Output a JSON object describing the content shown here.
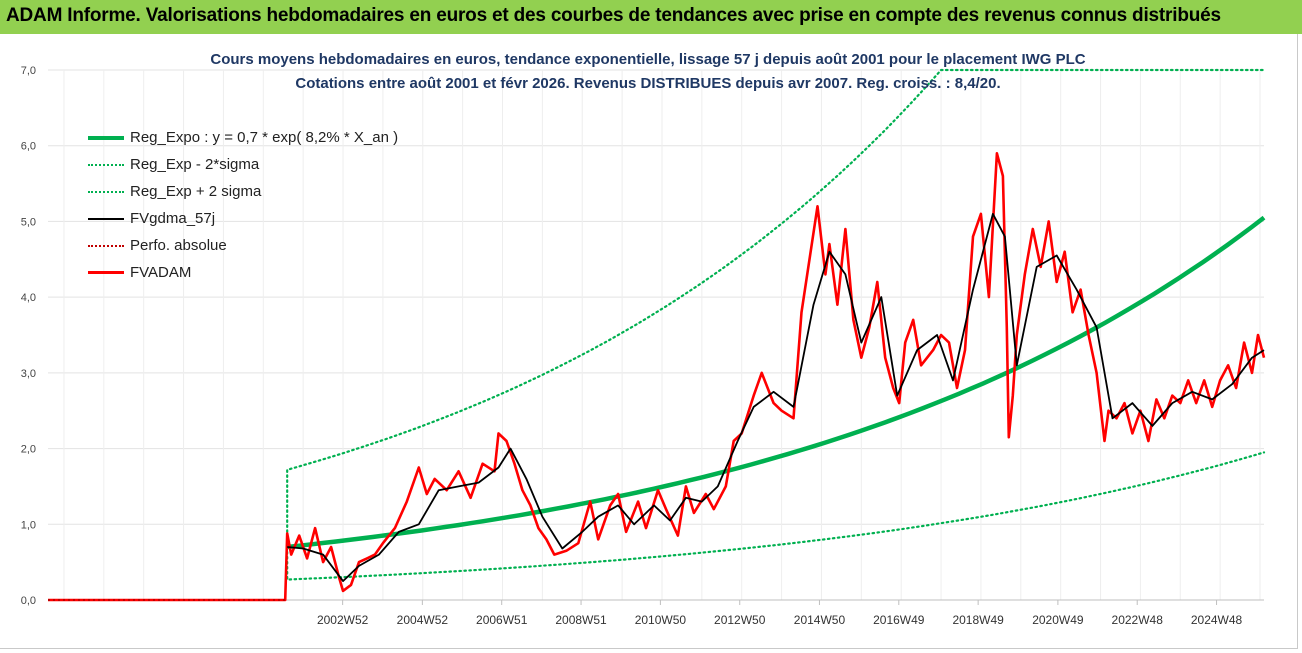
{
  "header": {
    "title": "ADAM Informe. Valorisations hebdomadaires en euros et des courbes de tendances avec prise en compte des revenus connus distribués"
  },
  "colors": {
    "header_bg": "#92d050",
    "title_text": "#1f3864",
    "reg_expo": "#00b050",
    "sigma_lines": "#00b050",
    "fvgdma": "#000000",
    "perfo": "#c00000",
    "fvadam": "#ff0000"
  },
  "chart_data": {
    "type": "line",
    "title_line1": "Cours moyens hebdomadaires en euros, tendance exponentielle, lissage 57 j depuis août 2001 pour le placement IWG PLC",
    "title_line2": "Cotations entre août 2001 et févr 2026. Revenus DISTRIBUES depuis avr 2007. Reg. croiss. : 8,4/20.",
    "ylim": [
      0,
      7
    ],
    "y_ticks": [
      "0,0",
      "1,0",
      "2,0",
      "3,0",
      "4,0",
      "5,0",
      "6,0",
      "7,0"
    ],
    "x_range": [
      1995.6,
      2026.1
    ],
    "x_ticks": [
      {
        "label": "2002W52",
        "x": 2002.99
      },
      {
        "label": "2004W52",
        "x": 2004.99
      },
      {
        "label": "2006W51",
        "x": 2006.98
      },
      {
        "label": "2008W51",
        "x": 2008.97
      },
      {
        "label": "2010W50",
        "x": 2010.96
      },
      {
        "label": "2012W50",
        "x": 2012.95
      },
      {
        "label": "2014W50",
        "x": 2014.95
      },
      {
        "label": "2016W49",
        "x": 2016.94
      },
      {
        "label": "2018W49",
        "x": 2018.93
      },
      {
        "label": "2020W49",
        "x": 2020.93
      },
      {
        "label": "2022W48",
        "x": 2022.92
      },
      {
        "label": "2024W48",
        "x": 2024.91
      }
    ],
    "grid": true,
    "legend_position": "left-upper",
    "series": [
      {
        "name": "Reg_Expo : y = 0,7 * exp( 8,2% *  X_an )",
        "style": "solid-thick",
        "x": [
          2001.6,
          2026.1
        ],
        "y": [
          0.7,
          5.05
        ],
        "model": "exponential"
      },
      {
        "name": "Reg_Exp - 2*sigma",
        "style": "dotted",
        "x": [
          2001.6,
          2026.1
        ],
        "y": [
          0.27,
          1.95
        ],
        "model": "exponential"
      },
      {
        "name": "Reg_Exp + 2 sigma",
        "style": "dotted",
        "x": [
          2001.6,
          2018.0,
          2026.1
        ],
        "y": [
          1.72,
          7.0,
          7.0
        ],
        "model": "exp-clipped"
      },
      {
        "name": "FVgdma_57j",
        "style": "solid",
        "x": [
          2001.6,
          2002.0,
          2002.5,
          2003.0,
          2003.4,
          2003.9,
          2004.4,
          2004.9,
          2005.4,
          2005.9,
          2006.4,
          2006.9,
          2007.2,
          2007.6,
          2008.0,
          2008.5,
          2009.0,
          2009.4,
          2009.9,
          2010.3,
          2010.8,
          2011.2,
          2011.6,
          2012.0,
          2012.4,
          2012.9,
          2013.3,
          2013.8,
          2014.3,
          2014.8,
          2015.2,
          2015.6,
          2016.0,
          2016.5,
          2016.9,
          2017.4,
          2017.9,
          2018.3,
          2018.8,
          2019.3,
          2019.6,
          2019.9,
          2020.4,
          2020.9,
          2021.4,
          2021.9,
          2022.3,
          2022.8,
          2023.3,
          2023.8,
          2024.3,
          2024.8,
          2025.3,
          2025.8,
          2026.1
        ],
        "y": [
          0.7,
          0.68,
          0.6,
          0.25,
          0.45,
          0.6,
          0.9,
          1.0,
          1.45,
          1.5,
          1.55,
          1.75,
          2.0,
          1.6,
          1.1,
          0.68,
          0.9,
          1.1,
          1.25,
          1.0,
          1.25,
          1.05,
          1.35,
          1.3,
          1.5,
          2.1,
          2.55,
          2.75,
          2.55,
          3.9,
          4.6,
          4.3,
          3.4,
          4.0,
          2.7,
          3.3,
          3.5,
          2.9,
          4.1,
          5.1,
          4.8,
          3.1,
          4.4,
          4.55,
          4.1,
          3.6,
          2.4,
          2.6,
          2.3,
          2.6,
          2.75,
          2.65,
          2.85,
          3.2,
          3.3
        ]
      },
      {
        "name": "Perfo. absolue",
        "style": "dotted-red",
        "x": [
          1995.6,
          2001.6
        ],
        "y": [
          0,
          0
        ]
      },
      {
        "name": "FVADAM",
        "style": "solid-red",
        "x": [
          1995.6,
          2001.55,
          2001.6,
          2001.7,
          2001.9,
          2002.1,
          2002.3,
          2002.5,
          2002.7,
          2002.9,
          2003.0,
          2003.2,
          2003.4,
          2003.6,
          2003.8,
          2004.0,
          2004.3,
          2004.6,
          2004.9,
          2005.1,
          2005.3,
          2005.6,
          2005.9,
          2006.2,
          2006.5,
          2006.8,
          2006.9,
          2007.1,
          2007.3,
          2007.5,
          2007.7,
          2007.9,
          2008.1,
          2008.3,
          2008.6,
          2008.9,
          2009.2,
          2009.4,
          2009.7,
          2009.9,
          2010.1,
          2010.4,
          2010.6,
          2010.9,
          2011.1,
          2011.4,
          2011.6,
          2011.8,
          2012.1,
          2012.3,
          2012.6,
          2012.8,
          2013.0,
          2013.3,
          2013.5,
          2013.8,
          2014.0,
          2014.3,
          2014.5,
          2014.7,
          2014.9,
          2015.1,
          2015.2,
          2015.4,
          2015.6,
          2015.8,
          2016.0,
          2016.2,
          2016.4,
          2016.6,
          2016.8,
          2016.95,
          2017.1,
          2017.3,
          2017.5,
          2017.8,
          2018.0,
          2018.2,
          2018.4,
          2018.6,
          2018.8,
          2019.0,
          2019.2,
          2019.4,
          2019.55,
          2019.65,
          2019.7,
          2019.8,
          2019.9,
          2020.1,
          2020.3,
          2020.5,
          2020.7,
          2020.9,
          2021.1,
          2021.3,
          2021.5,
          2021.7,
          2021.9,
          2022.1,
          2022.2,
          2022.4,
          2022.6,
          2022.8,
          2023.0,
          2023.2,
          2023.4,
          2023.6,
          2023.8,
          2024.0,
          2024.2,
          2024.4,
          2024.6,
          2024.8,
          2025.0,
          2025.2,
          2025.4,
          2025.6,
          2025.8,
          2025.95,
          2026.1
        ],
        "y": [
          0,
          0,
          0.88,
          0.6,
          0.85,
          0.55,
          0.95,
          0.5,
          0.7,
          0.3,
          0.12,
          0.2,
          0.5,
          0.55,
          0.6,
          0.75,
          0.95,
          1.3,
          1.75,
          1.4,
          1.6,
          1.45,
          1.7,
          1.35,
          1.8,
          1.7,
          2.2,
          2.1,
          1.8,
          1.45,
          1.25,
          0.95,
          0.8,
          0.6,
          0.65,
          0.75,
          1.3,
          0.8,
          1.25,
          1.4,
          0.9,
          1.3,
          0.95,
          1.45,
          1.2,
          0.85,
          1.5,
          1.15,
          1.4,
          1.2,
          1.5,
          2.1,
          2.2,
          2.7,
          3.0,
          2.6,
          2.5,
          2.4,
          3.8,
          4.5,
          5.2,
          4.3,
          4.7,
          3.9,
          4.9,
          3.7,
          3.2,
          3.6,
          4.2,
          3.2,
          2.8,
          2.6,
          3.4,
          3.7,
          3.1,
          3.3,
          3.5,
          3.4,
          2.8,
          3.3,
          4.8,
          5.1,
          4.0,
          5.9,
          5.6,
          3.6,
          2.15,
          2.7,
          3.5,
          4.3,
          4.9,
          4.4,
          5.0,
          4.2,
          4.6,
          3.8,
          4.1,
          3.5,
          3.0,
          2.1,
          2.5,
          2.4,
          2.6,
          2.2,
          2.5,
          2.1,
          2.65,
          2.4,
          2.7,
          2.6,
          2.9,
          2.6,
          2.9,
          2.55,
          2.9,
          3.1,
          2.8,
          3.4,
          3.0,
          3.5,
          3.2
        ]
      }
    ]
  }
}
